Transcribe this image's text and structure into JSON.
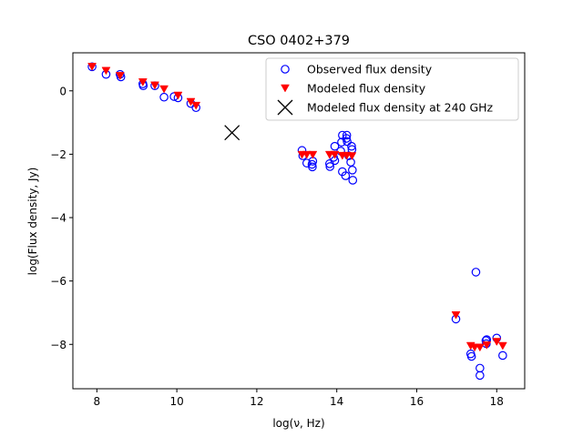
{
  "chart_data": {
    "type": "scatter",
    "title": "CSO 0402+379",
    "xlabel": "log(ν, Hz)",
    "ylabel": "log(Flux density, Jy)",
    "xlim": [
      7.4,
      18.7
    ],
    "ylim": [
      -9.4,
      1.2
    ],
    "xticks": [
      8,
      10,
      12,
      14,
      16,
      18
    ],
    "yticks": [
      0,
      -2,
      -4,
      -6,
      -8
    ],
    "legend_position": "top-right",
    "series": [
      {
        "name": "Observed flux density",
        "marker": "circle-open",
        "color": "#0000ff",
        "points": [
          [
            7.88,
            0.76
          ],
          [
            8.23,
            0.52
          ],
          [
            8.58,
            0.52
          ],
          [
            8.6,
            0.44
          ],
          [
            9.15,
            0.22
          ],
          [
            9.16,
            0.16
          ],
          [
            9.45,
            0.16
          ],
          [
            9.68,
            -0.2
          ],
          [
            9.93,
            -0.18
          ],
          [
            10.03,
            -0.22
          ],
          [
            10.35,
            -0.4
          ],
          [
            10.48,
            -0.53
          ],
          [
            13.13,
            -1.88
          ],
          [
            13.15,
            -2.05
          ],
          [
            13.25,
            -2.28
          ],
          [
            13.38,
            -2.32
          ],
          [
            13.39,
            -2.4
          ],
          [
            13.4,
            -2.22
          ],
          [
            13.82,
            -2.3
          ],
          [
            13.83,
            -2.39
          ],
          [
            13.92,
            -2.1
          ],
          [
            13.95,
            -2.2
          ],
          [
            13.95,
            -1.75
          ],
          [
            14.1,
            -1.9
          ],
          [
            14.12,
            -1.62
          ],
          [
            14.14,
            -1.4
          ],
          [
            14.14,
            -2.55
          ],
          [
            14.22,
            -2.68
          ],
          [
            14.24,
            -1.5
          ],
          [
            14.25,
            -1.4
          ],
          [
            14.26,
            -1.6
          ],
          [
            14.3,
            -2.05
          ],
          [
            14.35,
            -2.25
          ],
          [
            14.37,
            -1.75
          ],
          [
            14.38,
            -1.85
          ],
          [
            14.39,
            -2.5
          ],
          [
            14.4,
            -2.82
          ],
          [
            16.98,
            -7.2
          ],
          [
            17.35,
            -8.3
          ],
          [
            17.37,
            -8.38
          ],
          [
            17.48,
            -5.72
          ],
          [
            17.58,
            -8.75
          ],
          [
            17.58,
            -8.98
          ],
          [
            17.73,
            -7.88
          ],
          [
            17.74,
            -7.98
          ],
          [
            17.75,
            -7.85
          ],
          [
            18.0,
            -7.8
          ],
          [
            18.15,
            -8.35
          ]
        ]
      },
      {
        "name": "Modeled flux density",
        "marker": "triangle-down",
        "color": "#ff0000",
        "points": [
          [
            7.88,
            0.76
          ],
          [
            8.23,
            0.63
          ],
          [
            8.58,
            0.47
          ],
          [
            9.15,
            0.27
          ],
          [
            9.45,
            0.17
          ],
          [
            9.68,
            0.05
          ],
          [
            10.03,
            -0.15
          ],
          [
            10.35,
            -0.35
          ],
          [
            10.48,
            -0.47
          ],
          [
            13.13,
            -2.02
          ],
          [
            13.25,
            -2.02
          ],
          [
            13.4,
            -2.02
          ],
          [
            13.82,
            -2.02
          ],
          [
            13.95,
            -2.02
          ],
          [
            14.14,
            -2.05
          ],
          [
            14.25,
            -2.05
          ],
          [
            14.38,
            -2.06
          ],
          [
            16.98,
            -7.08
          ],
          [
            17.35,
            -8.05
          ],
          [
            17.45,
            -8.1
          ],
          [
            17.58,
            -8.1
          ],
          [
            17.75,
            -8.03
          ],
          [
            18.0,
            -7.92
          ],
          [
            18.15,
            -8.05
          ]
        ]
      },
      {
        "name": "Modeled flux density at 240 GHz",
        "marker": "x",
        "color": "#000000",
        "points": [
          [
            11.38,
            -1.32
          ]
        ]
      }
    ]
  }
}
